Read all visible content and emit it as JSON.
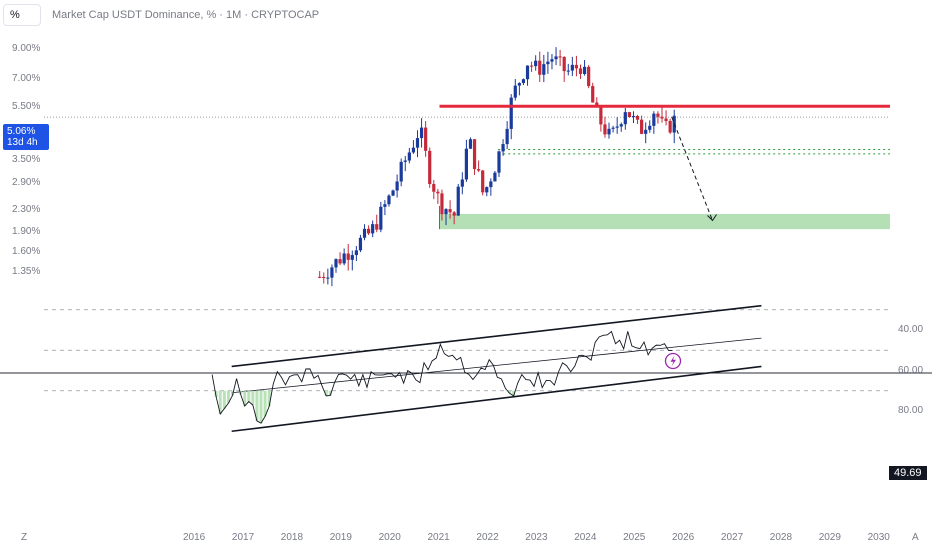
{
  "toolbar": {
    "symbol_box": "%"
  },
  "title": "Market Cap USDT Dominance, % · 1M · CRYPTOCAP",
  "price_badge": {
    "value": "5.06%",
    "countdown": "13d 4h"
  },
  "rsi_badge": "49.69",
  "corner_left": "Z",
  "corner_right": "A",
  "colors": {
    "up": "#1a3a9c",
    "down": "#c42a3a",
    "resistance": "#e6283c",
    "support_zone": "#a8dba8",
    "target_line": "#5a8a5a"
  },
  "chart_data": [
    {
      "type": "candlestick",
      "title": "Market Cap USDT Dominance, % · 1M · CRYPTOCAP",
      "ylabel": "",
      "y_scale": "log",
      "y_ticks": [
        "9.00%",
        "7.00%",
        "5.50%",
        "3.50%",
        "2.90%",
        "2.30%",
        "1.90%",
        "1.60%",
        "1.35%"
      ],
      "x_ticks": [
        "2016",
        "2017",
        "2018",
        "2019",
        "2020",
        "2021",
        "2022",
        "2023",
        "2024",
        "2025",
        "2026",
        "2027",
        "2028",
        "2029",
        "2030"
      ],
      "annotations": {
        "resistance_level": 5.55,
        "current_price": 5.06,
        "support_zone": [
          1.95,
          2.22
        ],
        "dotted_levels": [
          3.84,
          3.7
        ],
        "projection": {
          "from": "2025-10",
          "to": "2026-08",
          "target": 2.1
        }
      }
    },
    {
      "type": "line",
      "title": "",
      "ylabel": "",
      "y_ticks": [
        "80.00",
        "60.00",
        "40.00"
      ],
      "current_value": 49.69,
      "levels": [
        70,
        50,
        30
      ],
      "channel": {
        "upper": {
          "start": [
            "2016-10",
            90
          ],
          "end": [
            "2027-08",
            58
          ]
        },
        "middle": {
          "start": [
            "2016-10",
            71
          ],
          "end": [
            "2027-08",
            44
          ]
        },
        "lower": {
          "start": [
            "2016-10",
            58
          ],
          "end": [
            "2027-08",
            28
          ]
        }
      }
    }
  ]
}
